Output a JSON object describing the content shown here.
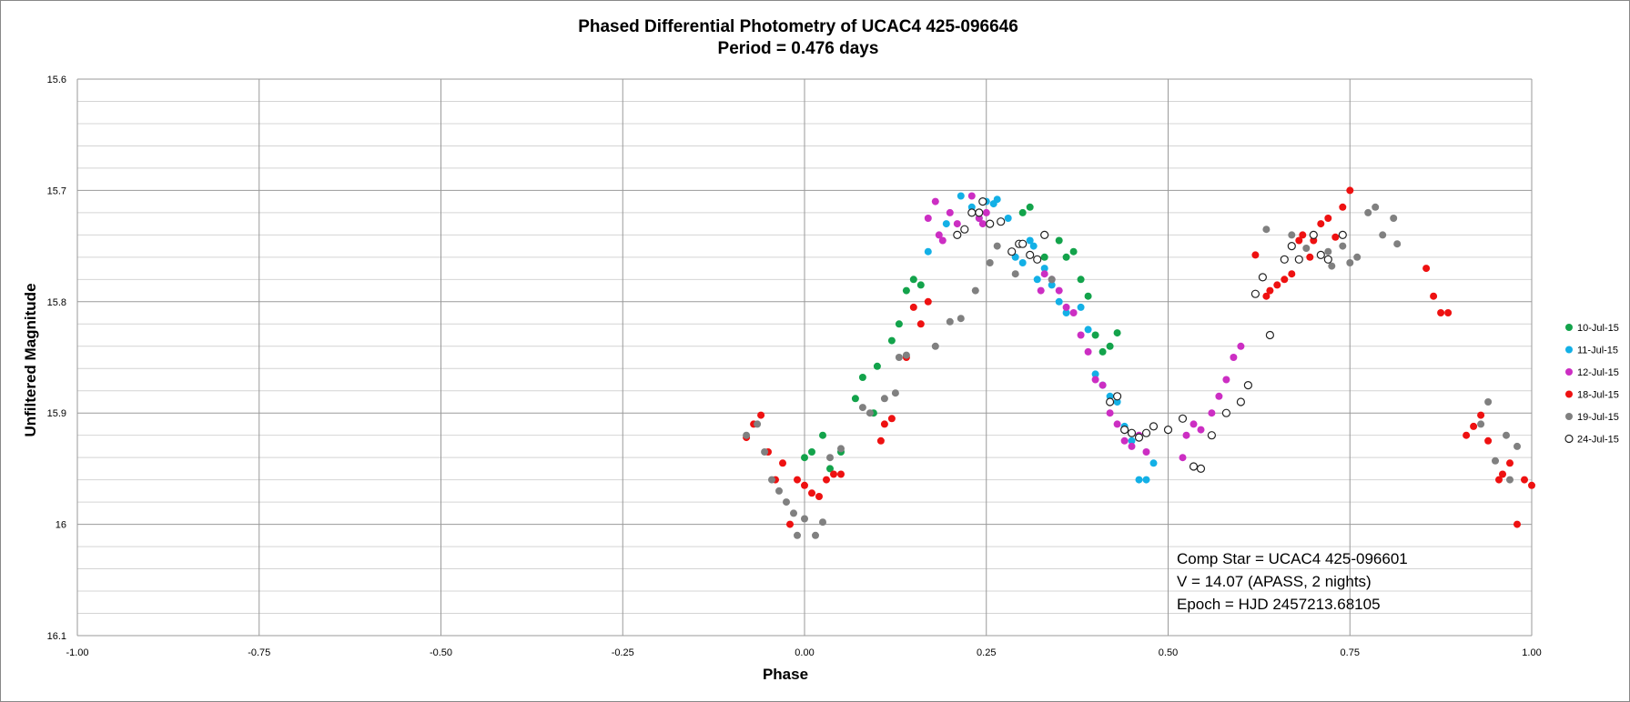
{
  "chart_data": {
    "type": "scatter",
    "title": "Phased Differential Photometry of UCAC4 425-096646",
    "subtitle": "Period = 0.476 days",
    "xlabel": "Phase",
    "ylabel": "Unfiltered Magnitude",
    "xlim": [
      -1.0,
      1.0
    ],
    "ylim": [
      15.6,
      16.1
    ],
    "y_inverted": true,
    "x_ticks": [
      -1.0,
      -0.75,
      -0.5,
      -0.25,
      0.0,
      0.25,
      0.5,
      0.75,
      1.0
    ],
    "x_tick_labels": [
      "-1.00",
      "-0.75",
      "-0.50",
      "-0.25",
      "0.00",
      "0.25",
      "0.50",
      "0.75",
      "1.00"
    ],
    "y_ticks": [
      15.6,
      15.7,
      15.8,
      15.9,
      16.0,
      16.1
    ],
    "y_tick_labels": [
      "15.6",
      "15.7",
      "15.8",
      "15.9",
      "16",
      "16.1"
    ],
    "grid": true,
    "minor_y_grid_step": 0.02,
    "legend_position": "right",
    "annotation": [
      "Comp Star = UCAC4 425-096601",
      "V = 14.07 (APASS, 2 nights)",
      "Epoch = HJD 2457213.68105"
    ],
    "series": [
      {
        "name": "10-Jul-15",
        "color": "#13A34B",
        "hollow": false,
        "x": [
          0.0,
          0.01,
          0.025,
          0.035,
          0.05,
          0.07,
          0.08,
          0.095,
          0.1,
          0.12,
          0.13,
          0.14,
          0.15,
          0.16,
          0.3,
          0.31,
          0.33,
          0.35,
          0.36,
          0.37,
          0.38,
          0.39,
          0.4,
          0.41,
          0.42,
          0.43
        ],
        "y": [
          15.94,
          15.935,
          15.92,
          15.95,
          15.935,
          15.887,
          15.868,
          15.9,
          15.858,
          15.835,
          15.82,
          15.79,
          15.78,
          15.785,
          15.72,
          15.715,
          15.76,
          15.745,
          15.76,
          15.755,
          15.78,
          15.795,
          15.83,
          15.845,
          15.84,
          15.828
        ]
      },
      {
        "name": "11-Jul-15",
        "color": "#13B0E6",
        "hollow": false,
        "x": [
          0.17,
          0.195,
          0.215,
          0.23,
          0.24,
          0.25,
          0.26,
          0.265,
          0.28,
          0.29,
          0.3,
          0.31,
          0.315,
          0.32,
          0.33,
          0.34,
          0.35,
          0.36,
          0.38,
          0.39,
          0.4,
          0.41,
          0.42,
          0.43,
          0.44,
          0.45,
          0.46,
          0.47,
          0.48
        ],
        "y": [
          15.755,
          15.73,
          15.705,
          15.715,
          15.725,
          15.71,
          15.712,
          15.708,
          15.725,
          15.76,
          15.765,
          15.745,
          15.75,
          15.78,
          15.77,
          15.785,
          15.8,
          15.81,
          15.805,
          15.825,
          15.865,
          15.875,
          15.885,
          15.89,
          15.912,
          15.925,
          15.96,
          15.96,
          15.945
        ]
      },
      {
        "name": "12-Jul-15",
        "color": "#CC2EC3",
        "hollow": false,
        "x": [
          0.17,
          0.18,
          0.185,
          0.19,
          0.2,
          0.21,
          0.23,
          0.24,
          0.245,
          0.25,
          0.325,
          0.33,
          0.34,
          0.35,
          0.36,
          0.37,
          0.38,
          0.39,
          0.4,
          0.41,
          0.42,
          0.43,
          0.44,
          0.45,
          0.46,
          0.47,
          0.52,
          0.525,
          0.535,
          0.545,
          0.56,
          0.57,
          0.58,
          0.59,
          0.6
        ],
        "y": [
          15.725,
          15.71,
          15.74,
          15.745,
          15.72,
          15.73,
          15.705,
          15.725,
          15.73,
          15.72,
          15.79,
          15.775,
          15.78,
          15.79,
          15.805,
          15.81,
          15.83,
          15.845,
          15.87,
          15.875,
          15.9,
          15.91,
          15.925,
          15.93,
          15.92,
          15.935,
          15.94,
          15.92,
          15.91,
          15.915,
          15.9,
          15.885,
          15.87,
          15.85,
          15.84
        ]
      },
      {
        "name": "18-Jul-15",
        "color": "#EE1111",
        "hollow": false,
        "x": [
          -0.08,
          -0.07,
          -0.06,
          -0.05,
          -0.04,
          -0.03,
          -0.02,
          -0.01,
          0.0,
          0.01,
          0.02,
          0.03,
          0.04,
          0.05,
          0.105,
          0.11,
          0.12,
          0.14,
          0.15,
          0.16,
          0.17,
          0.62,
          0.635,
          0.64,
          0.65,
          0.66,
          0.67,
          0.68,
          0.685,
          0.695,
          0.7,
          0.71,
          0.72,
          0.73,
          0.74,
          0.75,
          0.855,
          0.865,
          0.875,
          0.885,
          0.91,
          0.92,
          0.93,
          0.94,
          0.955,
          0.96,
          0.97,
          0.98,
          0.99,
          1.0
        ],
        "y": [
          15.922,
          15.91,
          15.902,
          15.935,
          15.96,
          15.945,
          16.0,
          15.96,
          15.965,
          15.972,
          15.975,
          15.96,
          15.955,
          15.955,
          15.925,
          15.91,
          15.905,
          15.85,
          15.805,
          15.82,
          15.8,
          15.758,
          15.795,
          15.79,
          15.785,
          15.78,
          15.775,
          15.745,
          15.74,
          15.76,
          15.745,
          15.73,
          15.725,
          15.742,
          15.715,
          15.7,
          15.77,
          15.795,
          15.81,
          15.81,
          15.92,
          15.912,
          15.902,
          15.925,
          15.96,
          15.955,
          15.945,
          16.0,
          15.96,
          15.965
        ]
      },
      {
        "name": "19-Jul-15",
        "color": "#808080",
        "hollow": false,
        "x": [
          -0.08,
          -0.065,
          -0.055,
          -0.045,
          -0.035,
          -0.025,
          -0.015,
          -0.01,
          0.0,
          0.015,
          0.025,
          0.035,
          0.05,
          0.08,
          0.09,
          0.11,
          0.125,
          0.13,
          0.14,
          0.18,
          0.2,
          0.215,
          0.235,
          0.255,
          0.265,
          0.29,
          0.34,
          0.635,
          0.67,
          0.69,
          0.72,
          0.725,
          0.74,
          0.75,
          0.76,
          0.775,
          0.785,
          0.795,
          0.81,
          0.815,
          0.93,
          0.94,
          0.95,
          0.965,
          0.97,
          0.98
        ],
        "y": [
          15.92,
          15.91,
          15.935,
          15.96,
          15.97,
          15.98,
          15.99,
          16.01,
          15.995,
          16.01,
          15.998,
          15.94,
          15.932,
          15.895,
          15.9,
          15.887,
          15.882,
          15.85,
          15.848,
          15.84,
          15.818,
          15.815,
          15.79,
          15.765,
          15.75,
          15.775,
          15.78,
          15.735,
          15.74,
          15.752,
          15.755,
          15.768,
          15.75,
          15.765,
          15.76,
          15.72,
          15.715,
          15.74,
          15.725,
          15.748,
          15.91,
          15.89,
          15.943,
          15.92,
          15.96,
          15.93
        ]
      },
      {
        "name": "24-Jul-15",
        "color": "#222222",
        "hollow": true,
        "x": [
          0.21,
          0.22,
          0.23,
          0.24,
          0.245,
          0.255,
          0.27,
          0.285,
          0.295,
          0.3,
          0.31,
          0.32,
          0.33,
          0.42,
          0.43,
          0.44,
          0.45,
          0.46,
          0.47,
          0.48,
          0.5,
          0.52,
          0.535,
          0.545,
          0.56,
          0.58,
          0.6,
          0.61,
          0.62,
          0.63,
          0.64,
          0.66,
          0.67,
          0.68,
          0.7,
          0.71,
          0.72,
          0.74
        ],
        "y": [
          15.74,
          15.735,
          15.72,
          15.72,
          15.71,
          15.73,
          15.728,
          15.755,
          15.748,
          15.748,
          15.758,
          15.762,
          15.74,
          15.89,
          15.885,
          15.915,
          15.918,
          15.922,
          15.918,
          15.912,
          15.915,
          15.905,
          15.948,
          15.95,
          15.92,
          15.9,
          15.89,
          15.875,
          15.793,
          15.778,
          15.83,
          15.762,
          15.75,
          15.762,
          15.74,
          15.758,
          15.762,
          15.74
        ]
      }
    ]
  }
}
